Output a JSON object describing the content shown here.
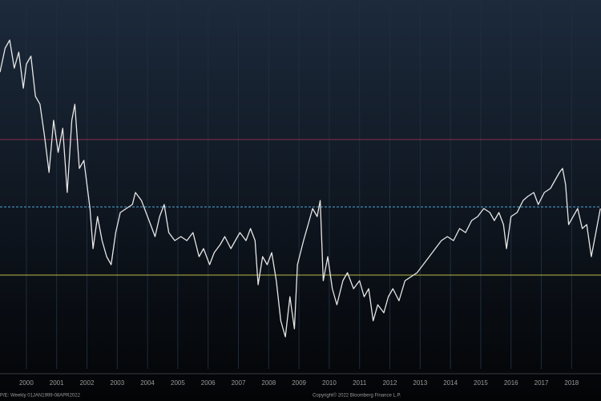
{
  "chart_data": {
    "type": "line",
    "x": [
      1999.13,
      1999.3,
      1999.45,
      1999.6,
      1999.75,
      1999.9,
      2000.0,
      2000.15,
      2000.3,
      2000.45,
      2000.6,
      2000.75,
      2000.9,
      2001.05,
      2001.2,
      2001.35,
      2001.5,
      2001.6,
      2001.75,
      2001.9,
      2002.1,
      2002.2,
      2002.35,
      2002.5,
      2002.65,
      2002.8,
      2002.95,
      2003.1,
      2003.3,
      2003.5,
      2003.6,
      2003.8,
      2003.95,
      2004.1,
      2004.25,
      2004.4,
      2004.55,
      2004.7,
      2004.9,
      2005.1,
      2005.3,
      2005.5,
      2005.7,
      2005.85,
      2006.05,
      2006.2,
      2006.4,
      2006.55,
      2006.75,
      2006.9,
      2007.05,
      2007.25,
      2007.4,
      2007.55,
      2007.65,
      2007.8,
      2007.95,
      2008.1,
      2008.25,
      2008.4,
      2008.55,
      2008.7,
      2008.85,
      2008.95,
      2009.15,
      2009.3,
      2009.45,
      2009.6,
      2009.7,
      2009.8,
      2009.95,
      2010.1,
      2010.25,
      2010.45,
      2010.6,
      2010.8,
      2011.0,
      2011.15,
      2011.3,
      2011.45,
      2011.6,
      2011.8,
      2011.95,
      2012.1,
      2012.3,
      2012.5,
      2012.7,
      2012.9,
      2013.1,
      2013.3,
      2013.5,
      2013.7,
      2013.9,
      2014.1,
      2014.3,
      2014.5,
      2014.7,
      2014.9,
      2015.1,
      2015.3,
      2015.45,
      2015.6,
      2015.75,
      2015.85,
      2016.0,
      2016.2,
      2016.4,
      2016.55,
      2016.75,
      2016.9,
      2017.1,
      2017.3,
      2017.45,
      2017.6,
      2017.7,
      2017.8,
      2017.9,
      2018.05,
      2018.2,
      2018.35,
      2018.5,
      2018.65,
      2018.8,
      2018.95
    ],
    "series": [
      {
        "color": "#e6e6e6",
        "values": [
          37,
          40,
          41,
          37.5,
          39.5,
          35,
          38,
          39,
          34,
          33,
          29,
          24.5,
          31,
          27,
          30,
          22,
          31,
          33,
          25,
          26,
          20,
          15,
          19,
          16,
          14,
          13,
          17,
          19.5,
          20,
          20.5,
          22,
          21,
          19.5,
          18,
          16.5,
          19,
          20.5,
          17,
          16,
          16.5,
          16,
          17,
          14,
          15,
          13,
          14.5,
          15.5,
          16.5,
          15,
          16,
          17,
          16,
          17.5,
          16,
          10.5,
          14,
          13,
          14.5,
          11,
          6,
          4,
          9,
          5,
          13,
          16,
          18,
          20,
          19,
          21,
          11,
          14,
          10,
          8,
          11,
          12,
          10,
          11,
          9,
          10,
          6,
          8,
          7,
          9,
          10,
          8.5,
          11,
          11.5,
          12,
          13,
          14,
          15,
          16,
          16.5,
          16,
          17.5,
          17,
          18.5,
          19,
          20,
          19.5,
          18.5,
          19.5,
          18,
          15,
          19,
          19.5,
          21,
          21.5,
          22,
          20.5,
          22,
          22.5,
          23.5,
          24.5,
          25,
          23,
          18,
          19,
          20,
          17.5,
          18,
          14,
          17,
          20
        ]
      }
    ],
    "reference_lines": [
      {
        "value": 28.6,
        "color": "#8a2f48"
      },
      {
        "value": 20.2,
        "color": "#4fa8d8",
        "dashed": true
      },
      {
        "value": 11.7,
        "color": "#b8b84a"
      }
    ],
    "xlim": [
      1999.13,
      2018.97
    ],
    "xticks": [
      2000,
      2001,
      2002,
      2003,
      2004,
      2005,
      2006,
      2007,
      2008,
      2009,
      2010,
      2011,
      2012,
      2013,
      2014,
      2015,
      2016,
      2017,
      2018
    ],
    "ylim": [
      0,
      46
    ],
    "grid": true,
    "footer_left": "P/E: Weekly 01JAN1999-08APR2022",
    "footer_center": "Copyright© 2022 Bloomberg Finance L.P."
  }
}
